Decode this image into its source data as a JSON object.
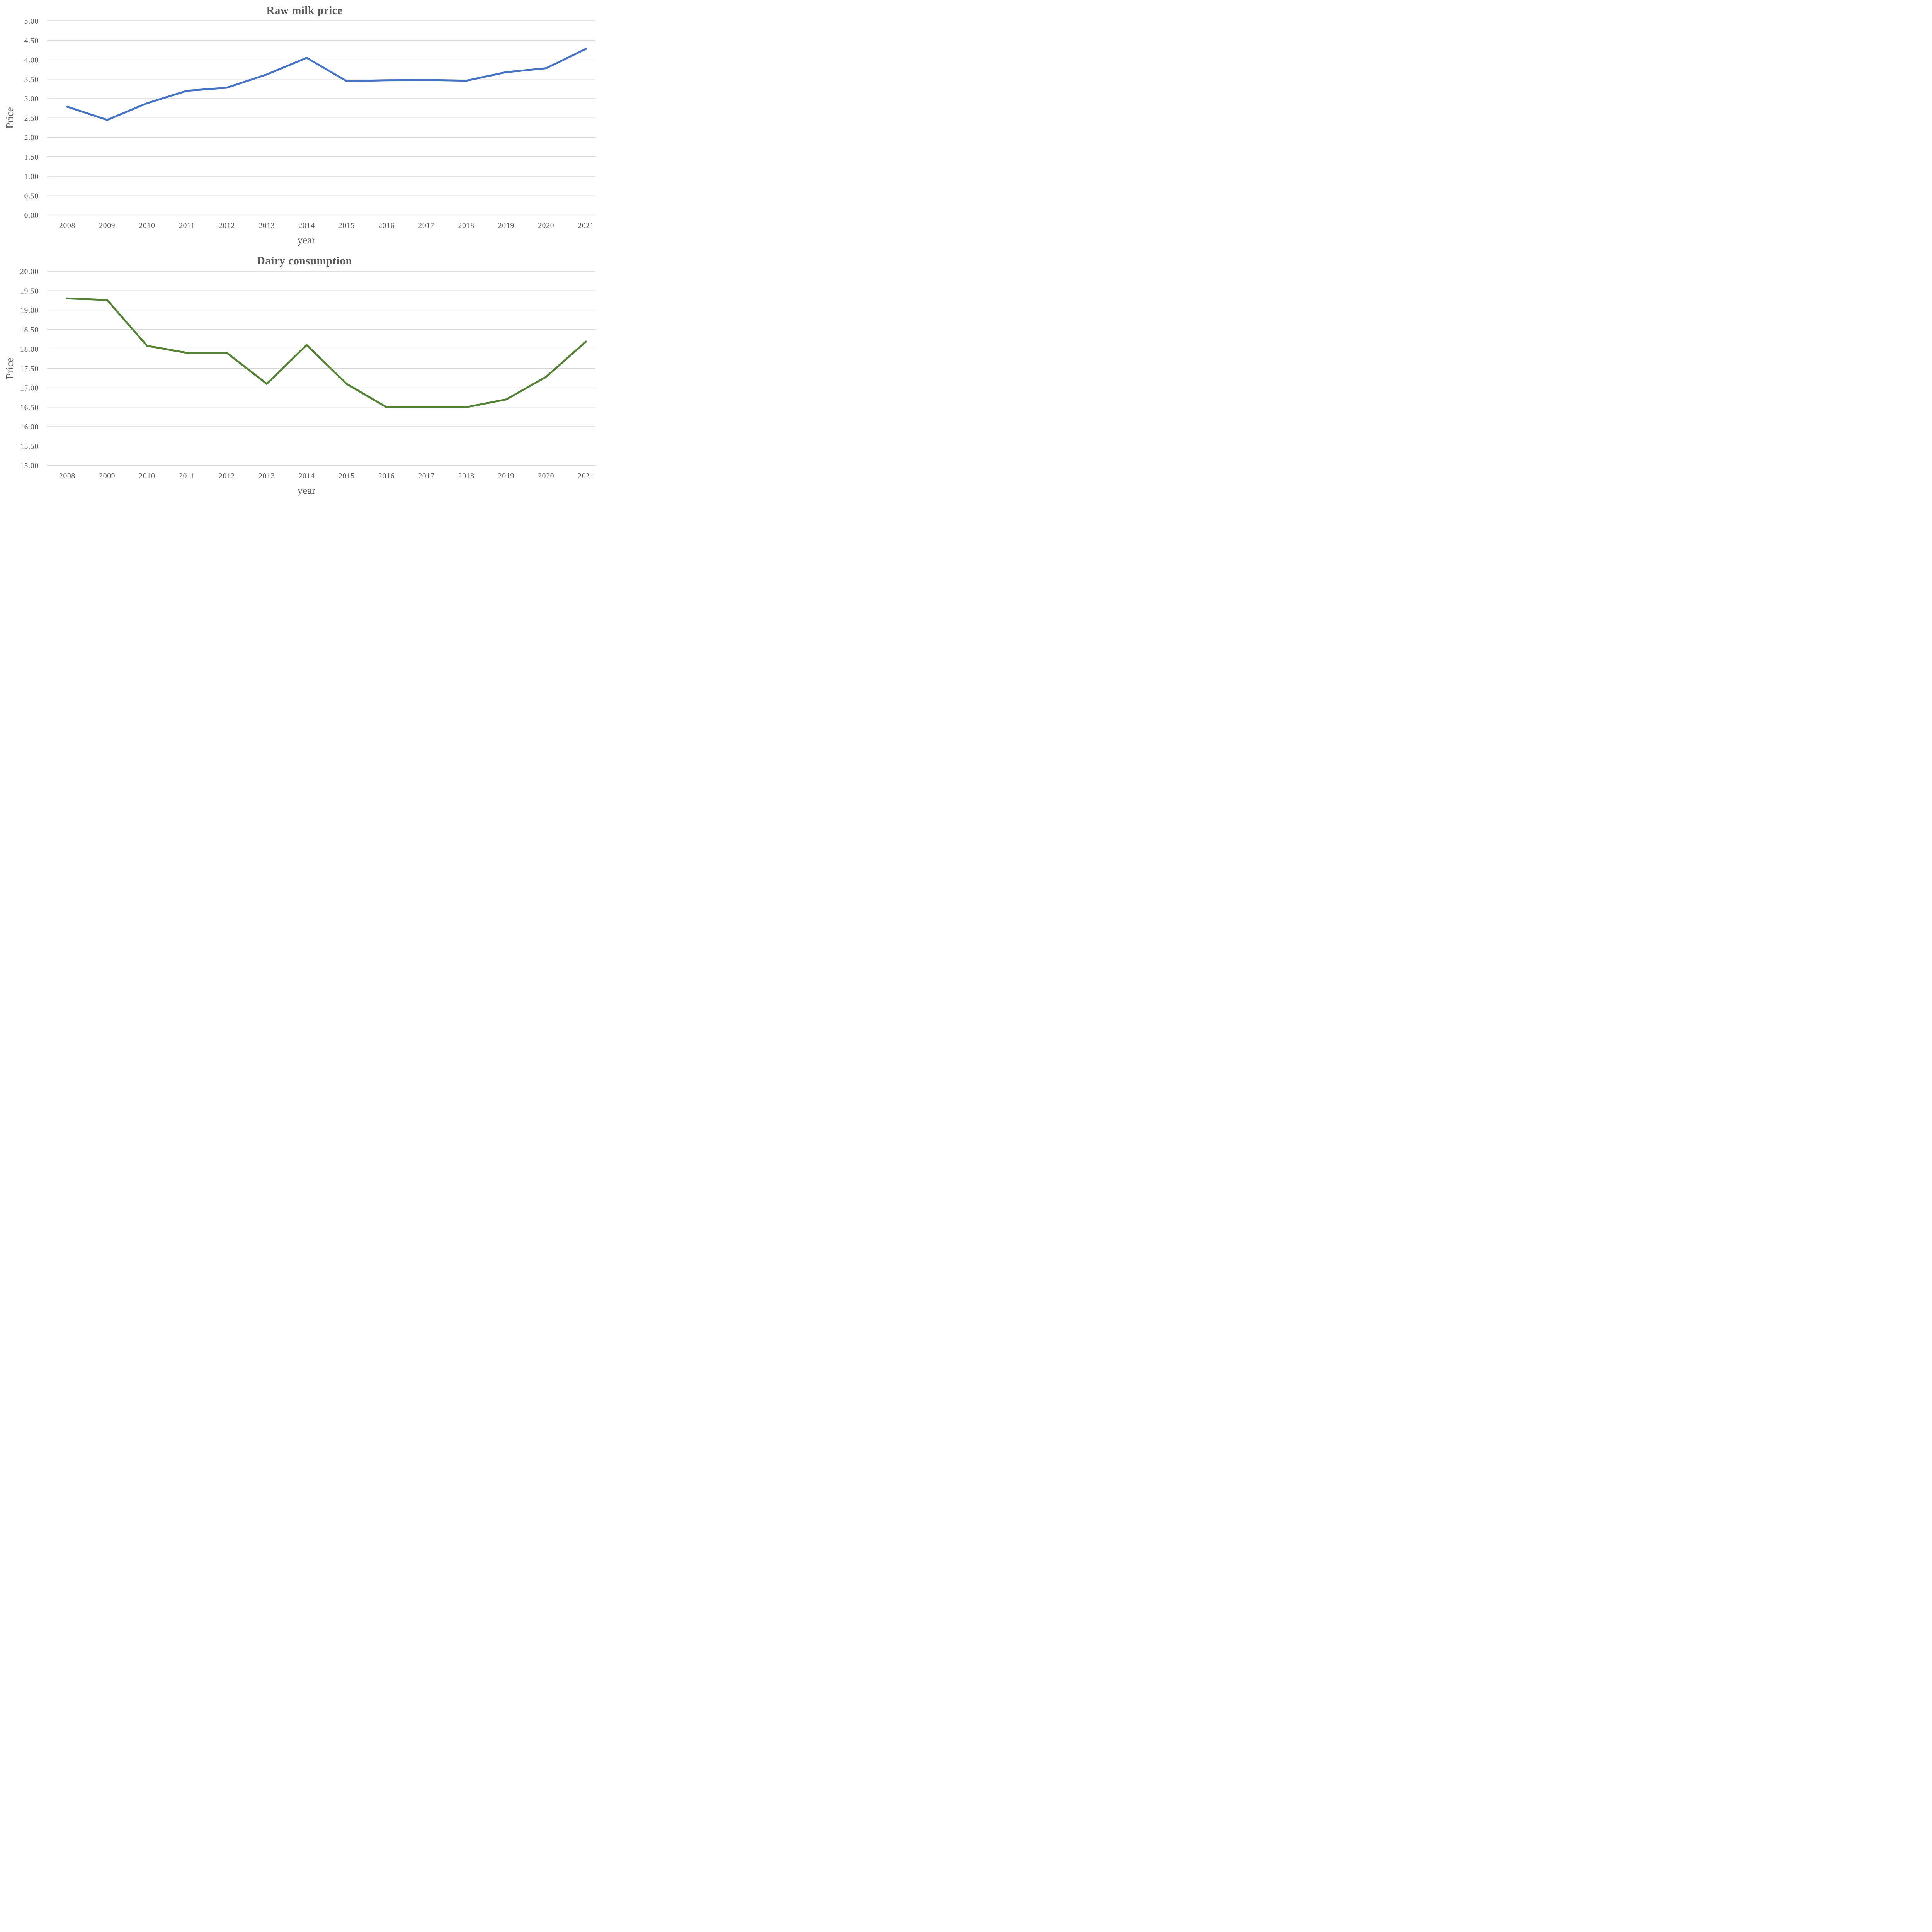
{
  "colors": {
    "raw_milk_line": "#4472C4",
    "dairy_line": "#548235",
    "gridline": "#D9D9D9",
    "axis_text": "#595959"
  },
  "chart_data": [
    {
      "type": "line",
      "title": "Raw milk price",
      "xlabel": "year",
      "ylabel": "Price",
      "legend": "none",
      "grid": true,
      "line_color": "#4472C4",
      "categories": [
        "2008",
        "2009",
        "2010",
        "2011",
        "2012",
        "2013",
        "2014",
        "2015",
        "2016",
        "2017",
        "2018",
        "2019",
        "2020",
        "2021"
      ],
      "values": [
        2.79,
        2.45,
        2.88,
        3.2,
        3.28,
        3.62,
        4.05,
        3.45,
        3.47,
        3.48,
        3.46,
        3.68,
        3.78,
        4.28
      ],
      "ylim": [
        0,
        5
      ],
      "ytick_step": 0.5,
      "yticks": [
        "5.00",
        "4.50",
        "4.00",
        "3.50",
        "3.00",
        "2.50",
        "2.00",
        "1.50",
        "1.00",
        "0.50",
        "0.00"
      ]
    },
    {
      "type": "line",
      "title": "Dairy consumption",
      "xlabel": "year",
      "ylabel": "Price",
      "legend": "none",
      "grid": true,
      "line_color": "#548235",
      "categories": [
        "2008",
        "2009",
        "2010",
        "2011",
        "2012",
        "2013",
        "2014",
        "2015",
        "2016",
        "2017",
        "2018",
        "2019",
        "2020",
        "2021"
      ],
      "values": [
        19.3,
        19.26,
        18.08,
        17.9,
        17.9,
        17.1,
        18.1,
        17.1,
        16.5,
        16.5,
        16.5,
        16.7,
        17.28,
        18.19
      ],
      "ylim": [
        15,
        20
      ],
      "ytick_step": 0.5,
      "yticks": [
        "20.00",
        "19.50",
        "19.00",
        "18.50",
        "18.00",
        "17.50",
        "17.00",
        "16.50",
        "16.00",
        "15.50",
        "15.00"
      ]
    }
  ]
}
